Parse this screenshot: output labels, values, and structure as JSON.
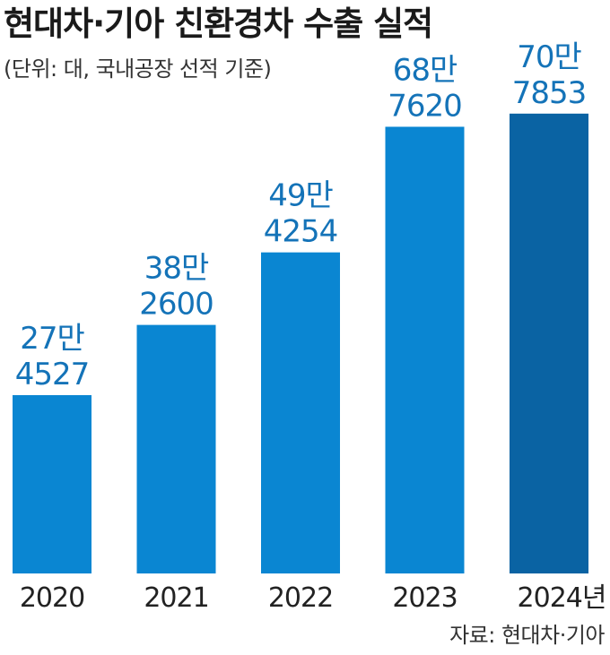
{
  "header": {
    "title": "현대차·기아 친환경차 수출 실적",
    "subtitle": "(단위: 대, 국내공장 선적 기준)"
  },
  "source": "자료: 현대차·기아",
  "colors": {
    "bar": "#0a86d2",
    "bar_highlight": "#0a63a3",
    "label": "#1473b8",
    "axis_text": "#222222"
  },
  "chart_data": {
    "type": "bar",
    "title": "현대차·기아 친환경차 수출 실적",
    "subtitle": "(단위: 대, 국내공장 선적 기준)",
    "categories": [
      "2020",
      "2021",
      "2022",
      "2023",
      "2024"
    ],
    "category_labels": [
      "2020",
      "2021",
      "2022",
      "2023",
      "2024년"
    ],
    "values": [
      274527,
      382600,
      494254,
      687620,
      707853
    ],
    "value_labels": [
      [
        "27만",
        "4527"
      ],
      [
        "38만",
        "2600"
      ],
      [
        "49만",
        "4254"
      ],
      [
        "68만",
        "7620"
      ],
      [
        "70만",
        "7853"
      ]
    ],
    "highlight_index": 4,
    "ylim": [
      0,
      800000
    ],
    "grid": false,
    "legend": "none",
    "xlabel": "",
    "ylabel": ""
  }
}
